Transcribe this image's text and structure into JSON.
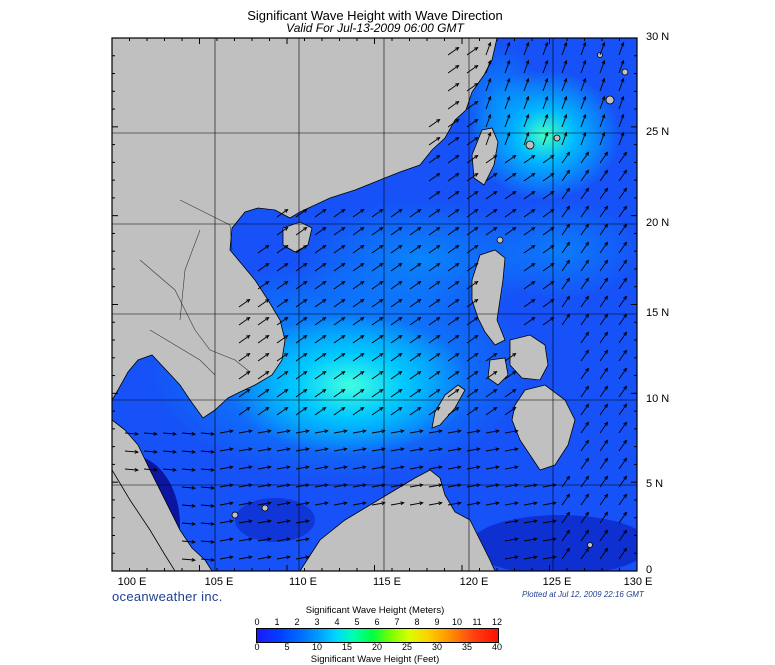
{
  "title": "Significant Wave Height with Wave Direction",
  "subtitle": "Valid For Jul-13-2009 06:00 GMT",
  "lat_labels": [
    "30 N",
    "25 N",
    "20 N",
    "15 N",
    "10 N",
    "5 N",
    "0"
  ],
  "lon_labels": [
    "100 E",
    "105 E",
    "110 E",
    "115 E",
    "120 E",
    "125 E",
    "130 E"
  ],
  "brand": "oceanweather inc.",
  "plotted": "Plotted at Jul 12, 2009 22:16 GMT",
  "legend": {
    "meters_title": "Significant Wave Height (Meters)",
    "meters_ticks": [
      "0",
      "1",
      "2",
      "3",
      "4",
      "5",
      "6",
      "7",
      "8",
      "9",
      "10",
      "11",
      "12"
    ],
    "feet_ticks": [
      "0",
      "5",
      "10",
      "15",
      "20",
      "25",
      "30",
      "35",
      "40"
    ],
    "feet_title": "Significant Wave Height (Feet)"
  },
  "colors": {
    "land": "#c0c0c0",
    "calm_sea": "#0a0a90",
    "low_wave": "#1a5cff",
    "mid_wave": "#00c8ff",
    "high_wave": "#40ffd0",
    "arrow": "#000000",
    "grid": "#000000"
  },
  "icons": {
    "wave_direction_arrow": "arrow-icon"
  }
}
